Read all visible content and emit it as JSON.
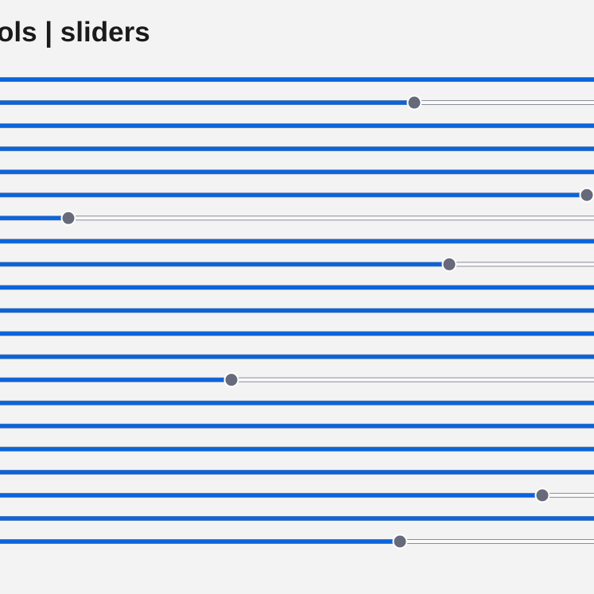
{
  "header": {
    "title": "ols | sliders"
  },
  "slider_range": [
    0,
    100
  ],
  "sliders": [
    {
      "value": 100
    },
    {
      "value": 72.1
    },
    {
      "value": 100
    },
    {
      "value": 100
    },
    {
      "value": 100
    },
    {
      "value": 93.8
    },
    {
      "value": 28.6
    },
    {
      "value": 100
    },
    {
      "value": 76.5
    },
    {
      "value": 100
    },
    {
      "value": 100
    },
    {
      "value": 100
    },
    {
      "value": 100
    },
    {
      "value": 49.1
    },
    {
      "value": 100
    },
    {
      "value": 100
    },
    {
      "value": 100
    },
    {
      "value": 100
    },
    {
      "value": 88.2
    },
    {
      "value": 100
    },
    {
      "value": 70.3
    }
  ]
}
